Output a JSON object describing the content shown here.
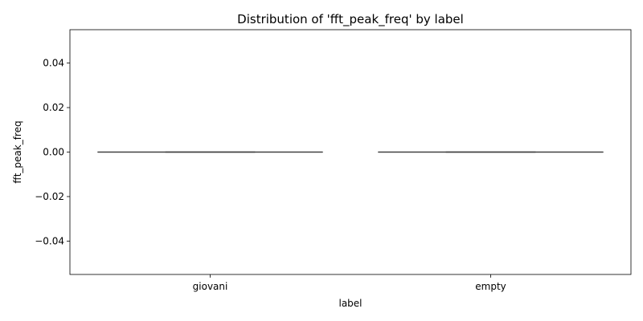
{
  "chart_data": {
    "type": "box",
    "title": "Distribution of 'fft_peak_freq' by label",
    "xlabel": "label",
    "ylabel": "fft_peak_freq",
    "categories": [
      "giovani",
      "empty"
    ],
    "ylim": [
      -0.055,
      0.055
    ],
    "yticks": [
      -0.04,
      -0.02,
      0.0,
      0.02,
      0.04
    ],
    "ytick_labels": [
      "−0.04",
      "−0.02",
      "0.00",
      "0.02",
      "0.04"
    ],
    "boxes": [
      {
        "category": "giovani",
        "whisker_low": 0.0,
        "q1": 0.0,
        "median": 0.0,
        "q3": 0.0,
        "whisker_high": 0.0
      },
      {
        "category": "empty",
        "whisker_low": 0.0,
        "q1": 0.0,
        "median": 0.0,
        "q3": 0.0,
        "whisker_high": 0.0
      }
    ],
    "colors": {
      "line": "#3f3f3f",
      "axes": "#000000",
      "background": "#ffffff"
    },
    "grid": false,
    "legend": "none"
  }
}
